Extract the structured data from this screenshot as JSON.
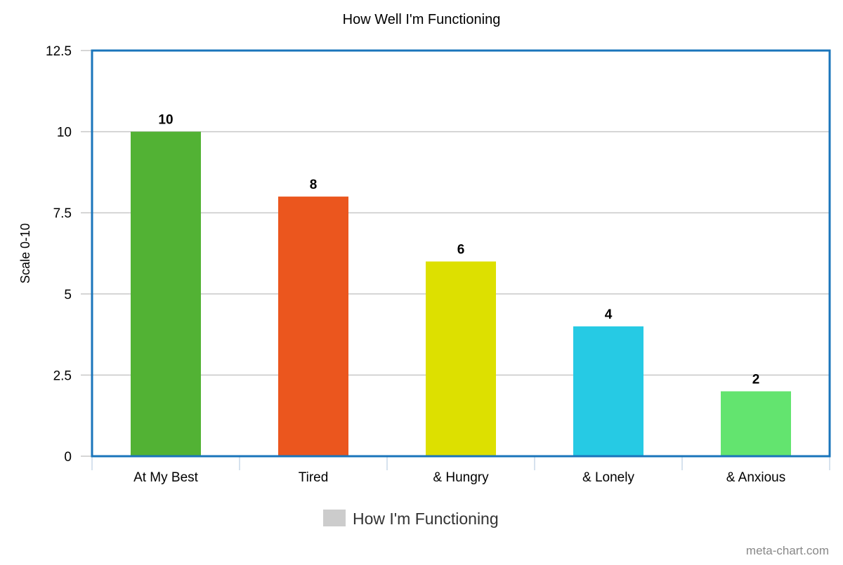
{
  "chart_data": {
    "type": "bar",
    "title": "How Well I'm Functioning",
    "ylabel": "Scale 0-10",
    "xlabel": "",
    "categories": [
      "At My Best",
      "Tired",
      "& Hungry",
      "& Lonely",
      "& Anxious"
    ],
    "series": [
      {
        "name": "How I'm Functioning",
        "values": [
          10,
          8,
          6,
          4,
          2
        ]
      }
    ],
    "bar_colors": [
      "#52b234",
      "#eb561e",
      "#dde000",
      "#26cae4",
      "#63e46f"
    ],
    "ylim": [
      0,
      12.5
    ],
    "yticks": [
      "0",
      "2.5",
      "5",
      "7.5",
      "10",
      "12.5"
    ],
    "data_labels": [
      "10",
      "8",
      "6",
      "4",
      "2"
    ],
    "grid": true,
    "legend_position": "bottom",
    "legend_color": "#cccccc",
    "frame_color": "#1a75bb"
  },
  "credit": "meta-chart.com"
}
